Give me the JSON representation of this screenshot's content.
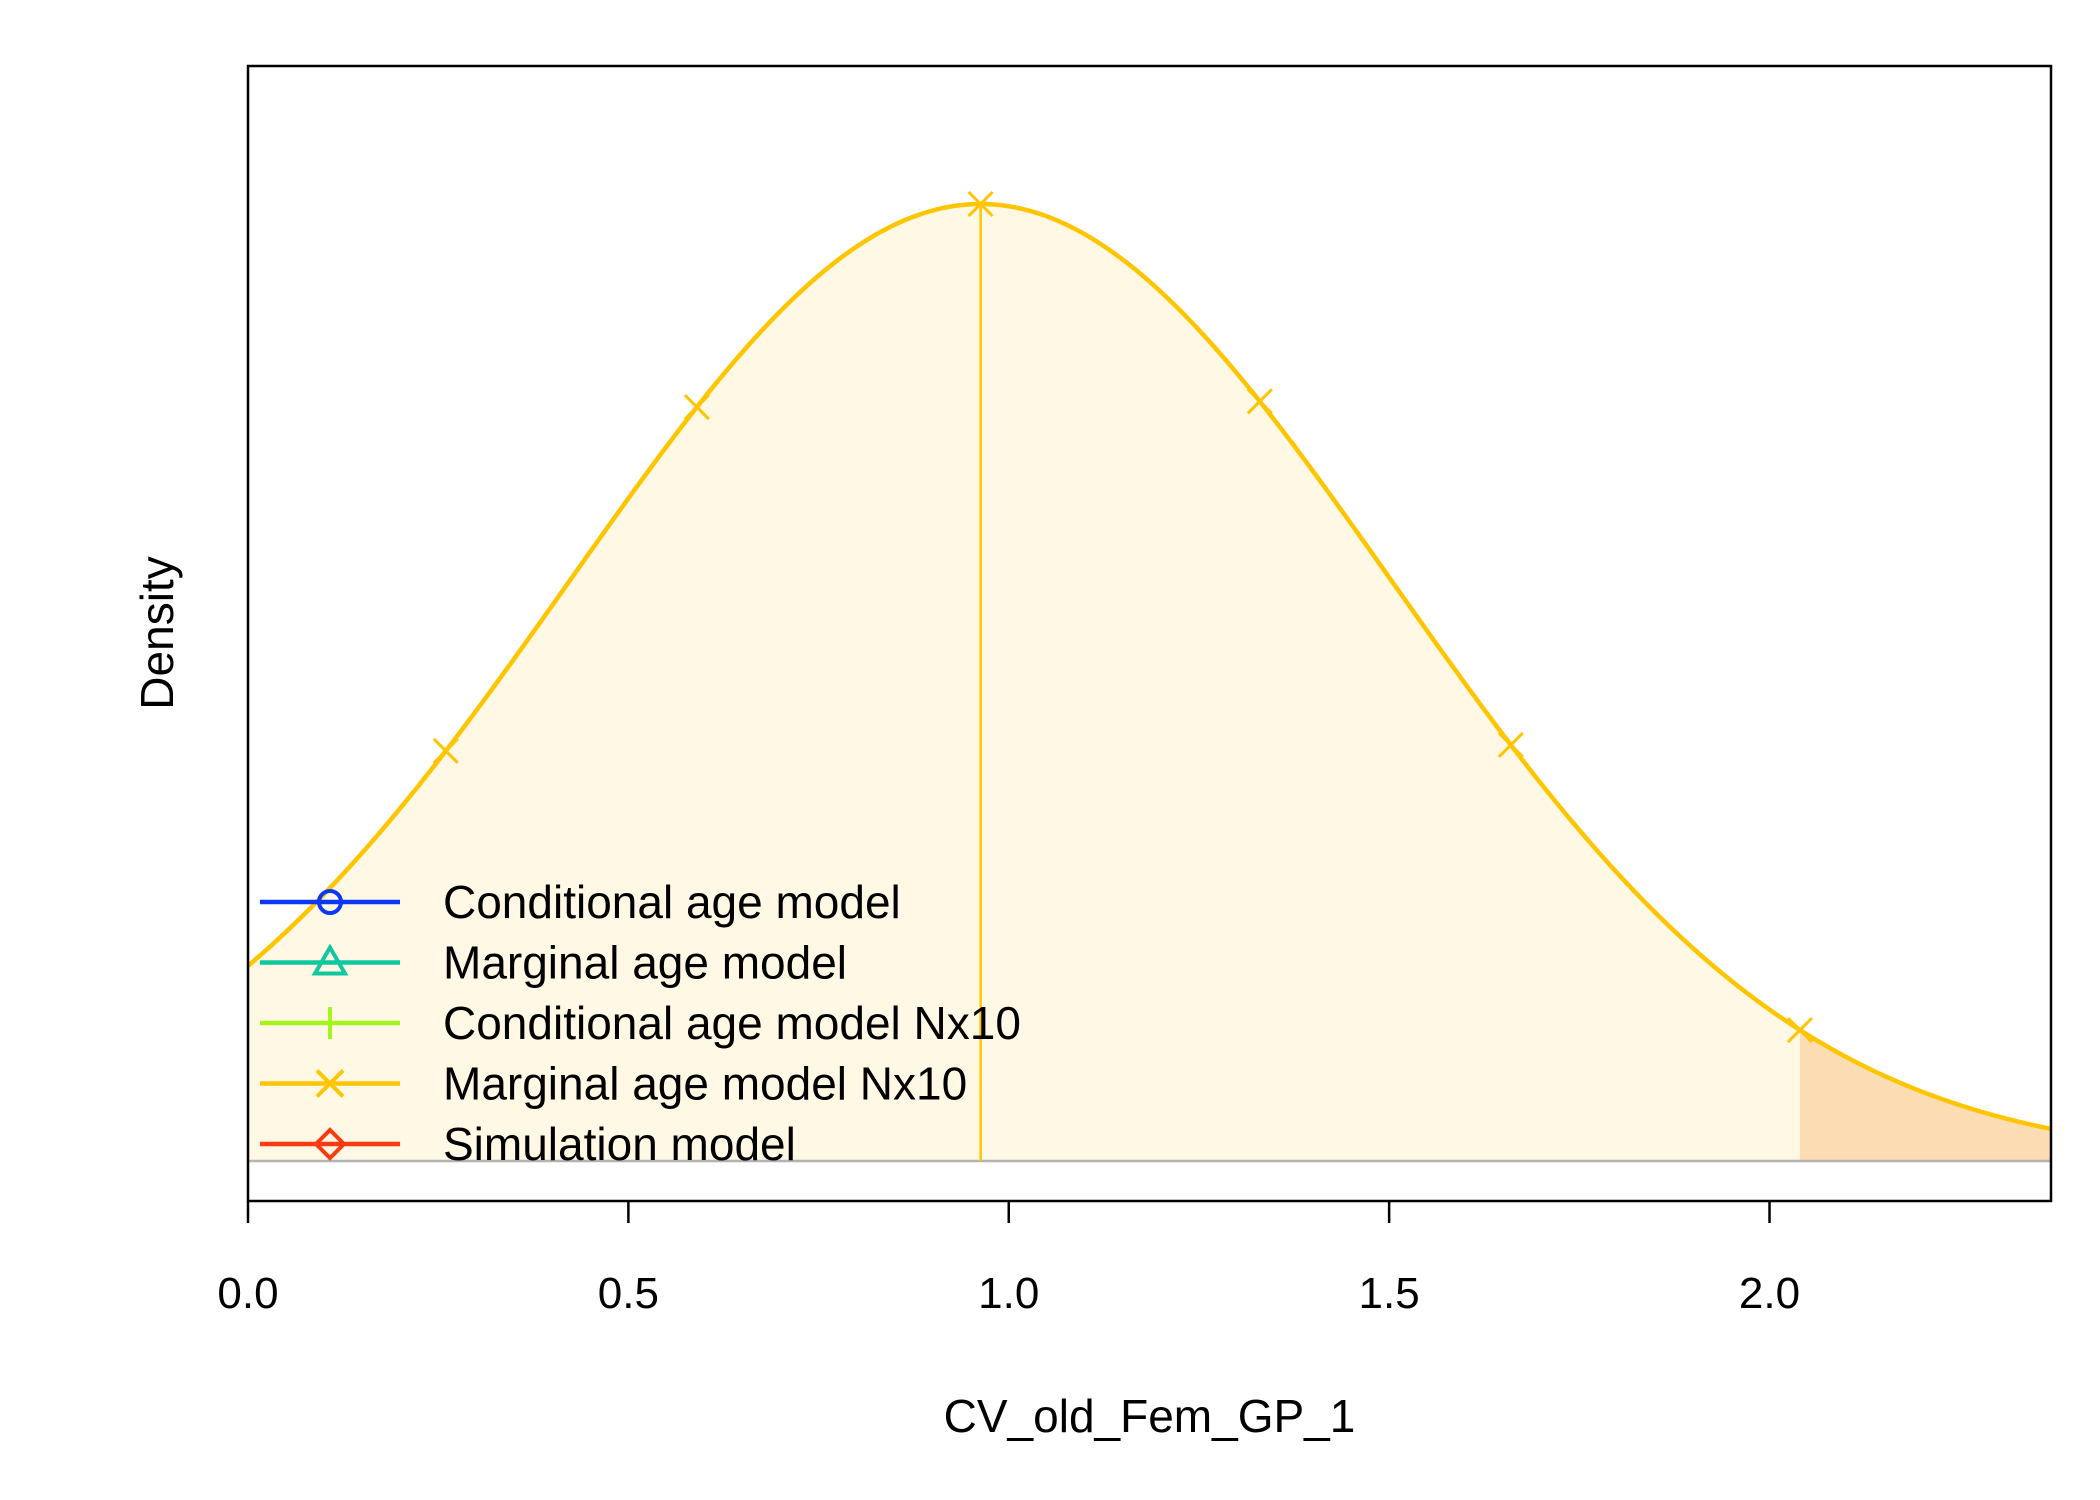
{
  "chart_data": {
    "type": "area",
    "title": "",
    "xlabel": "CV_old_Fem_GP_1",
    "ylabel": "Density",
    "xlim": [
      0,
      2.37
    ],
    "x_ticks": [
      "0.0",
      "0.5",
      "1.0",
      "1.5",
      "2.0"
    ],
    "y_ticks_shown": false,
    "grid": false,
    "legend_position": "bottom-left",
    "density": {
      "series_name": "Marginal age model Nx10",
      "mean": 0.963,
      "sd": 0.54,
      "peak_x": 0.963,
      "color": "#FFC500",
      "fill_color": "#FFF8E4",
      "tail_fill_color": "#FCDDB3",
      "tail_start_x": 2.04,
      "marker_x": [
        0.26,
        0.59,
        0.963,
        1.33,
        1.66,
        2.04
      ]
    },
    "legend": [
      {
        "label": "Conditional age model",
        "color": "#0B37F7",
        "marker": "circle"
      },
      {
        "label": "Marginal age model",
        "color": "#10C8A0",
        "marker": "triangle"
      },
      {
        "label": "Conditional age model Nx10",
        "color": "#A5F51C",
        "marker": "plus"
      },
      {
        "label": "Marginal age model Nx10",
        "color": "#FFC500",
        "marker": "cross"
      },
      {
        "label": "Simulation model",
        "color": "#FF3A12",
        "marker": "diamond"
      }
    ]
  }
}
